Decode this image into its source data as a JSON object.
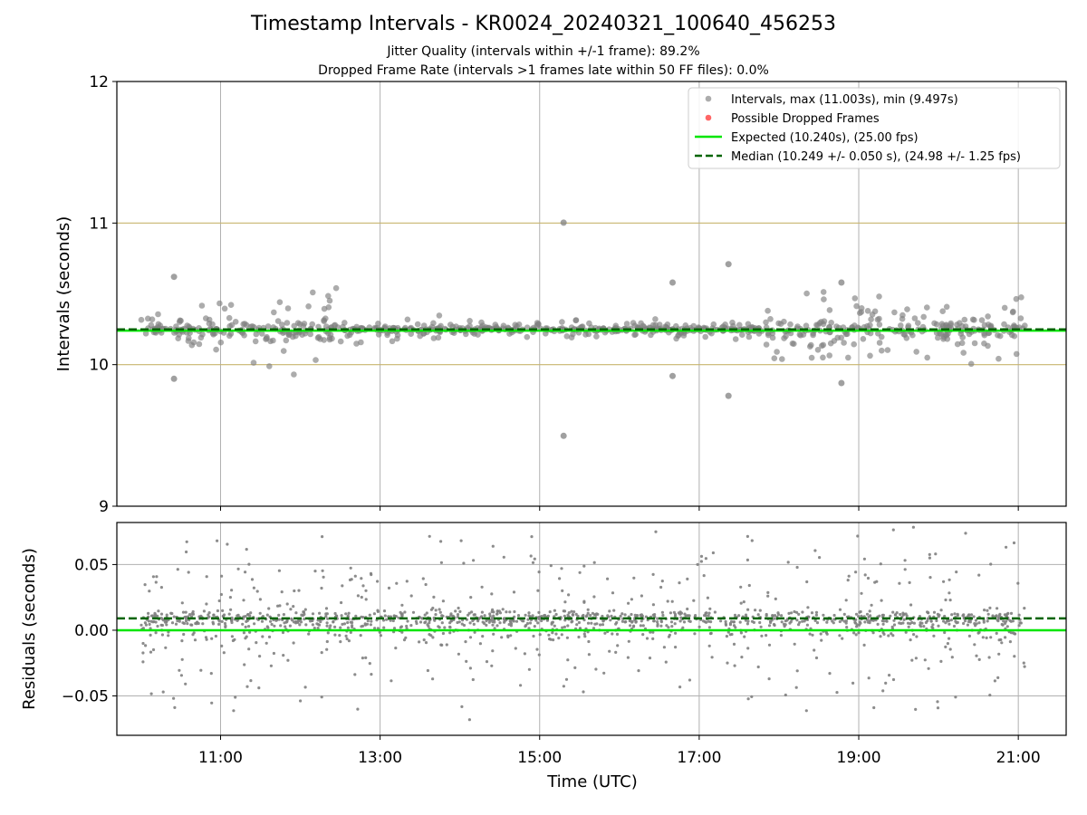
{
  "title": "Timestamp Intervals - KR0024_20240321_100640_456253",
  "subtitle_1": "Jitter Quality (intervals within +/-1 frame): 89.2%",
  "subtitle_2": "Dropped Frame Rate (intervals >1 frames late within 50 FF files): 0.0%",
  "colors": {
    "intervals": "#808080",
    "dropped": "#ff0000",
    "expected": "#00e600",
    "median": "#006400",
    "band": "#c8b46e",
    "grid": "#b0b0b0"
  },
  "chart_data": [
    {
      "type": "scatter",
      "name": "intervals",
      "ylabel": "Intervals (seconds)",
      "ylim": [
        9,
        12
      ],
      "yticks": [
        "9",
        "10",
        "11",
        "12"
      ],
      "xlim_hours": [
        9.7,
        21.6
      ],
      "grid": "vertical",
      "legend_placement": "top-right",
      "legend": [
        "Intervals, max (11.003s), min (9.497s)",
        "Possible Dropped Frames",
        "Expected (10.240s), (25.00 fps)",
        "Median (10.249 +/- 0.050 s), (24.98 +/- 1.25 fps)"
      ],
      "expected": 10.24,
      "median": 10.249,
      "bands": [
        10.0,
        11.0
      ],
      "max": 11.003,
      "min": 9.497,
      "highlighted_points": [
        {
          "x": "10:25",
          "y": 10.62
        },
        {
          "x": "10:25",
          "y": 9.9
        },
        {
          "x": "15:18",
          "y": 11.003
        },
        {
          "x": "15:18",
          "y": 9.497
        },
        {
          "x": "16:40",
          "y": 10.58
        },
        {
          "x": "16:40",
          "y": 9.92
        },
        {
          "x": "17:22",
          "y": 10.71
        },
        {
          "x": "17:22",
          "y": 9.78
        },
        {
          "x": "18:47",
          "y": 10.58
        },
        {
          "x": "18:47",
          "y": 9.87
        }
      ],
      "activity_segments": [
        {
          "start": "10:00",
          "end": "10:45",
          "spread": 0.06
        },
        {
          "start": "10:45",
          "end": "12:30",
          "spread": 0.14
        },
        {
          "start": "12:30",
          "end": "14:00",
          "spread": 0.04
        },
        {
          "start": "14:00",
          "end": "17:50",
          "spread": 0.03
        },
        {
          "start": "17:50",
          "end": "21:05",
          "spread": 0.12
        }
      ]
    },
    {
      "type": "scatter",
      "name": "residuals",
      "ylabel": "Residuals (seconds)",
      "xlabel": "Time (UTC)",
      "ylim": [
        -0.08,
        0.082
      ],
      "yticks": [
        "−0.05",
        "0.00",
        "0.05"
      ],
      "ytick_values": [
        -0.05,
        0.0,
        0.05
      ],
      "xticks": [
        "11:00",
        "13:00",
        "15:00",
        "17:00",
        "19:00",
        "21:00"
      ],
      "xtick_hours": [
        11,
        13,
        15,
        17,
        19,
        21
      ],
      "grid": "both",
      "expected": 0.0,
      "median": 0.009
    }
  ]
}
